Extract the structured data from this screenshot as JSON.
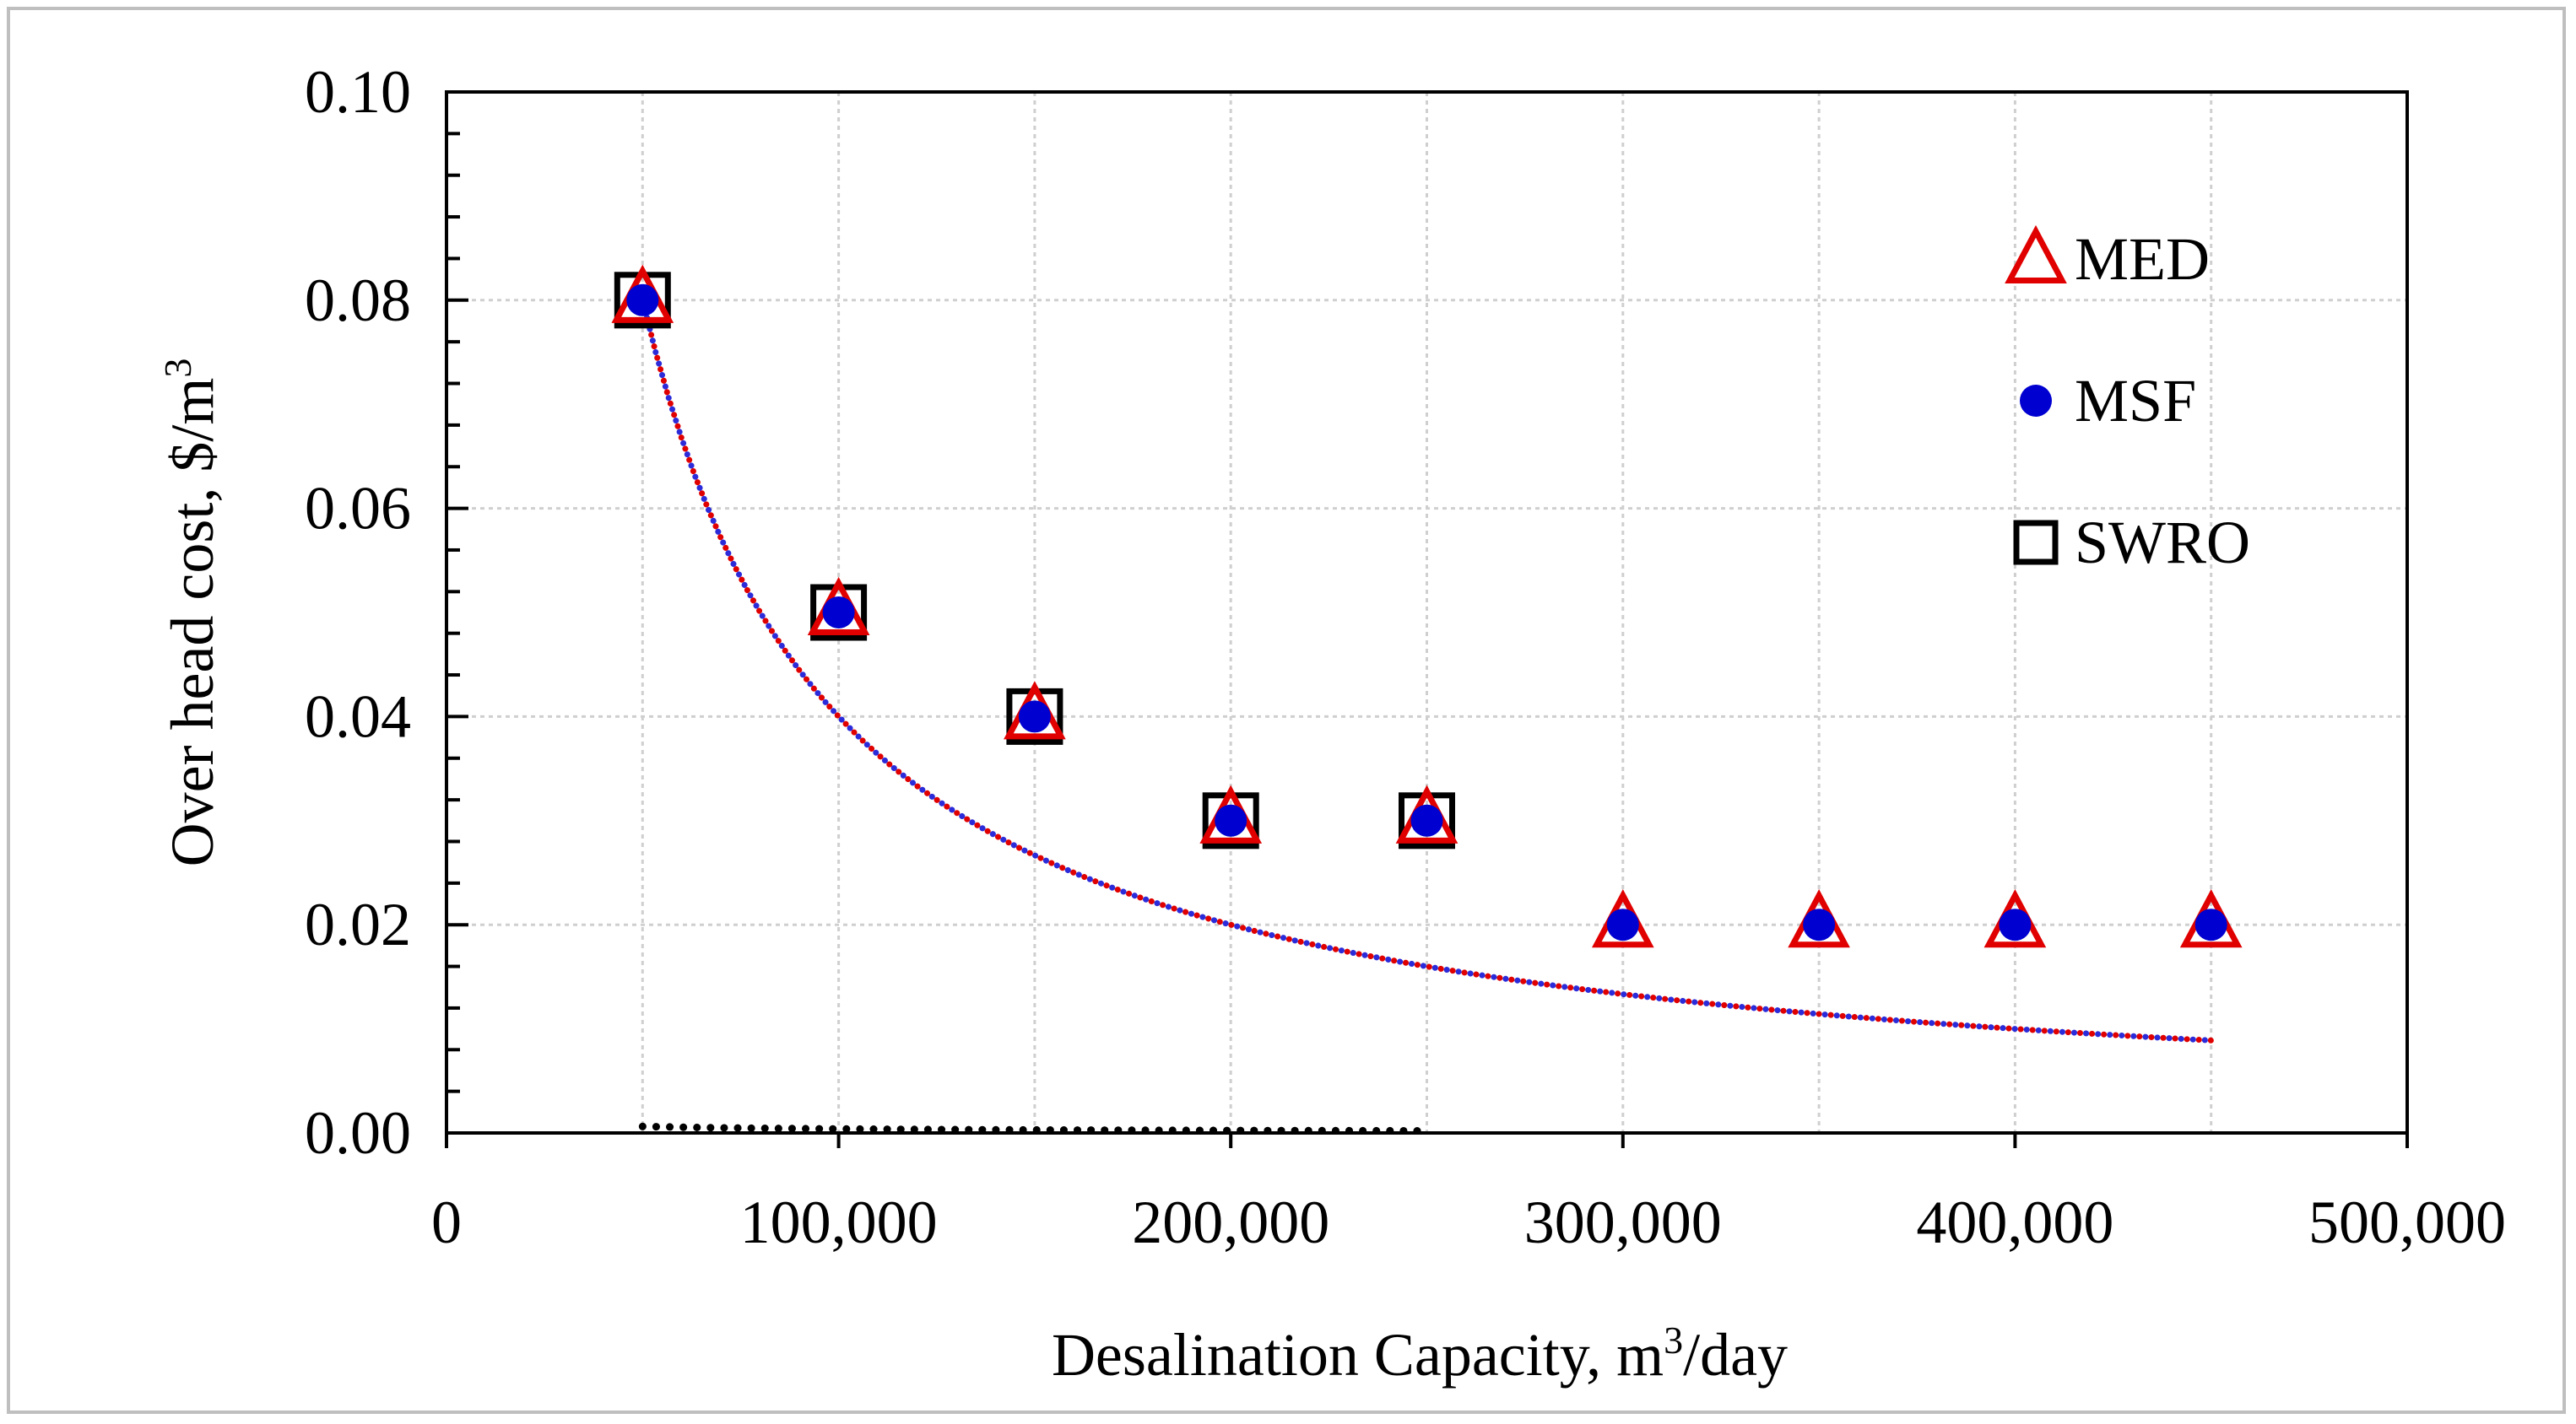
{
  "chart_data": {
    "type": "scatter",
    "title": "",
    "xlabel": "Desalination Capacity, m",
    "xlabel_sup": "3",
    "xlabel_suffix": "/day",
    "ylabel": "Over head cost, $/m",
    "ylabel_sup": "3",
    "xlim": [
      0,
      500000
    ],
    "ylim": [
      0,
      0.1
    ],
    "x_ticks": [
      0,
      100000,
      200000,
      300000,
      400000,
      500000
    ],
    "x_tick_labels": [
      "0",
      "100,000",
      "200,000",
      "300,000",
      "400,000",
      "500,000"
    ],
    "y_ticks": [
      0,
      0.02,
      0.04,
      0.06,
      0.08,
      0.1
    ],
    "y_tick_labels": [
      "0.00",
      "0.02",
      "0.04",
      "0.06",
      "0.08",
      "0.10"
    ],
    "grid": true,
    "legend_position": "top-right",
    "series": [
      {
        "name": "MED",
        "marker": "triangle",
        "color": "#e00000",
        "x": [
          50000,
          100000,
          150000,
          200000,
          250000,
          300000,
          350000,
          400000,
          450000
        ],
        "y": [
          0.08,
          0.05,
          0.04,
          0.03,
          0.03,
          0.02,
          0.02,
          0.02,
          0.02
        ],
        "trend": {
          "type": "power",
          "a": 4000,
          "b": -1,
          "color": "#e00000",
          "x_from": 50000,
          "x_to": 450000
        }
      },
      {
        "name": "MSF",
        "marker": "circle",
        "color": "#0000d0",
        "x": [
          50000,
          100000,
          150000,
          200000,
          250000,
          300000,
          350000,
          400000,
          450000
        ],
        "y": [
          0.08,
          0.05,
          0.04,
          0.03,
          0.03,
          0.02,
          0.02,
          0.02,
          0.02
        ],
        "trend": {
          "type": "power",
          "a": 4000,
          "b": -1,
          "color": "#2b2bd9",
          "x_from": 50000,
          "x_to": 450000
        }
      },
      {
        "name": "SWRO",
        "marker": "square",
        "color": "#000000",
        "x": [
          50000,
          100000,
          150000,
          200000,
          250000
        ],
        "y": [
          0.08,
          0.05,
          0.04,
          0.03,
          0.03
        ],
        "trend": {
          "type": "power",
          "a": 1.22,
          "b": -0.7,
          "color": "#000000",
          "x_from": 50000,
          "x_to": 250000
        }
      }
    ]
  }
}
